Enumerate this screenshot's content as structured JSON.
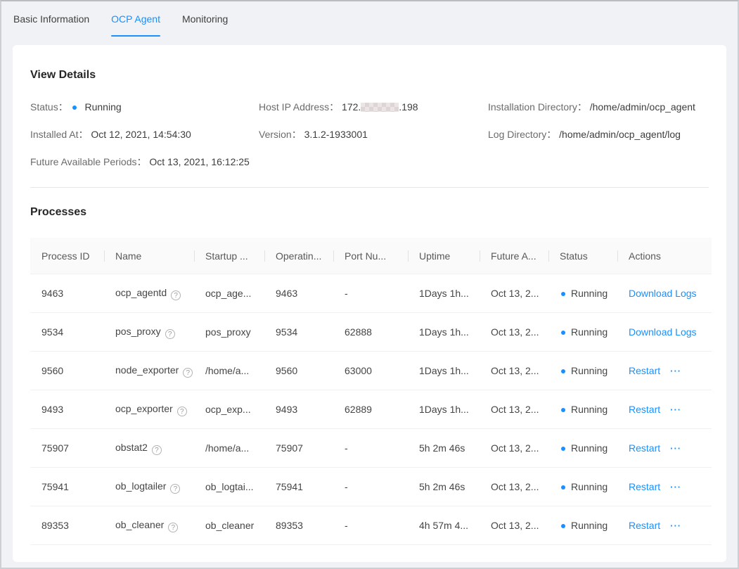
{
  "colors": {
    "accent": "#1890ff",
    "link": "#1890ff",
    "status_dot": "#1890ff"
  },
  "tabs": {
    "basic_information": "Basic Information",
    "ocp_agent": "OCP Agent",
    "monitoring": "Monitoring"
  },
  "view_details": {
    "title": "View Details",
    "status": {
      "label": "Status：",
      "value": "Running"
    },
    "host_ip": {
      "label": "Host IP Address：",
      "prefix": "172.",
      "suffix": ".198"
    },
    "installation_directory": {
      "label": "Installation Directory：",
      "value": "/home/admin/ocp_agent"
    },
    "installed_at": {
      "label": "Installed At：",
      "value": "Oct 12, 2021, 14:54:30"
    },
    "version": {
      "label": "Version：",
      "value": "3.1.2-1933001"
    },
    "log_directory": {
      "label": "Log Directory：",
      "value": "/home/admin/ocp_agent/log"
    },
    "future_available_periods": {
      "label": "Future Available Periods：",
      "value": "Oct 13, 2021, 16:12:25"
    }
  },
  "processes": {
    "title": "Processes",
    "columns": {
      "process_id": "Process ID",
      "name": "Name",
      "startup": "Startup ...",
      "operating": "Operatin...",
      "port": "Port Nu...",
      "uptime": "Uptime",
      "future": "Future A...",
      "status": "Status",
      "actions": "Actions"
    },
    "rows": [
      {
        "process_id": "9463",
        "name": "ocp_agentd",
        "startup": "ocp_age...",
        "operating": "9463",
        "port": "-",
        "uptime": "1Days 1h...",
        "future": "Oct 13, 2...",
        "status": "Running",
        "action": "Download Logs",
        "more": false
      },
      {
        "process_id": "9534",
        "name": "pos_proxy",
        "startup": "pos_proxy",
        "operating": "9534",
        "port": "62888",
        "uptime": "1Days 1h...",
        "future": "Oct 13, 2...",
        "status": "Running",
        "action": "Download Logs",
        "more": false
      },
      {
        "process_id": "9560",
        "name": "node_exporter",
        "startup": "/home/a...",
        "operating": "9560",
        "port": "63000",
        "uptime": "1Days 1h...",
        "future": "Oct 13, 2...",
        "status": "Running",
        "action": "Restart",
        "more": true
      },
      {
        "process_id": "9493",
        "name": "ocp_exporter",
        "startup": "ocp_exp...",
        "operating": "9493",
        "port": "62889",
        "uptime": "1Days 1h...",
        "future": "Oct 13, 2...",
        "status": "Running",
        "action": "Restart",
        "more": true
      },
      {
        "process_id": "75907",
        "name": "obstat2",
        "startup": "/home/a...",
        "operating": "75907",
        "port": "-",
        "uptime": "5h 2m 46s",
        "future": "Oct 13, 2...",
        "status": "Running",
        "action": "Restart",
        "more": true
      },
      {
        "process_id": "75941",
        "name": "ob_logtailer",
        "startup": "ob_logtai...",
        "operating": "75941",
        "port": "-",
        "uptime": "5h 2m 46s",
        "future": "Oct 13, 2...",
        "status": "Running",
        "action": "Restart",
        "more": true
      },
      {
        "process_id": "89353",
        "name": "ob_cleaner",
        "startup": "ob_cleaner",
        "operating": "89353",
        "port": "-",
        "uptime": "4h 57m 4...",
        "future": "Oct 13, 2...",
        "status": "Running",
        "action": "Restart",
        "more": true
      }
    ]
  }
}
